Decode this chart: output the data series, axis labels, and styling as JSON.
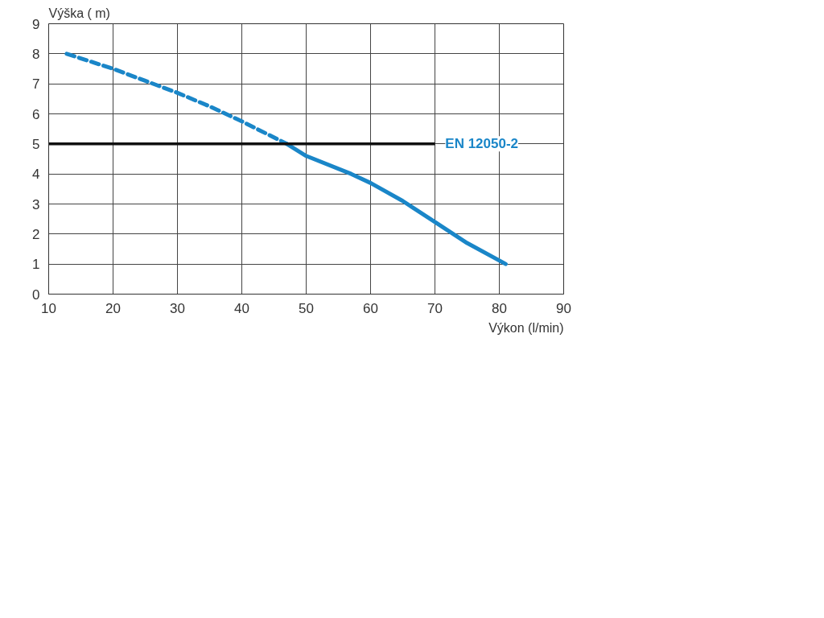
{
  "chart_data": {
    "type": "line",
    "xlabel": "Výkon (l/min)",
    "ylabel": "Výška ( m)",
    "series": [
      {
        "color": "#1a86c8",
        "line_style": "dashed",
        "x": [
          12.8,
          20,
          25,
          30,
          35,
          40,
          47
        ],
        "values": [
          8.0,
          7.5,
          7.1,
          6.7,
          6.25,
          5.75,
          5.0
        ]
      },
      {
        "color": "#1a86c8",
        "line_style": "solid",
        "x": [
          47,
          50,
          57,
          60,
          65,
          70,
          75,
          81
        ],
        "values": [
          5.0,
          4.6,
          4.0,
          3.7,
          3.1,
          2.4,
          1.7,
          1.0
        ]
      }
    ],
    "ref_lines": [
      {
        "axis": "y",
        "value": 5,
        "label": "EN 12050-2",
        "color": "#111111"
      }
    ],
    "xlim": [
      10,
      90
    ],
    "ylim": [
      0,
      9
    ],
    "xticks": [
      10,
      20,
      30,
      40,
      50,
      60,
      70,
      80,
      90
    ],
    "yticks": [
      0,
      1,
      2,
      3,
      4,
      5,
      6,
      7,
      8,
      9
    ],
    "grid": true,
    "marker": "none"
  }
}
